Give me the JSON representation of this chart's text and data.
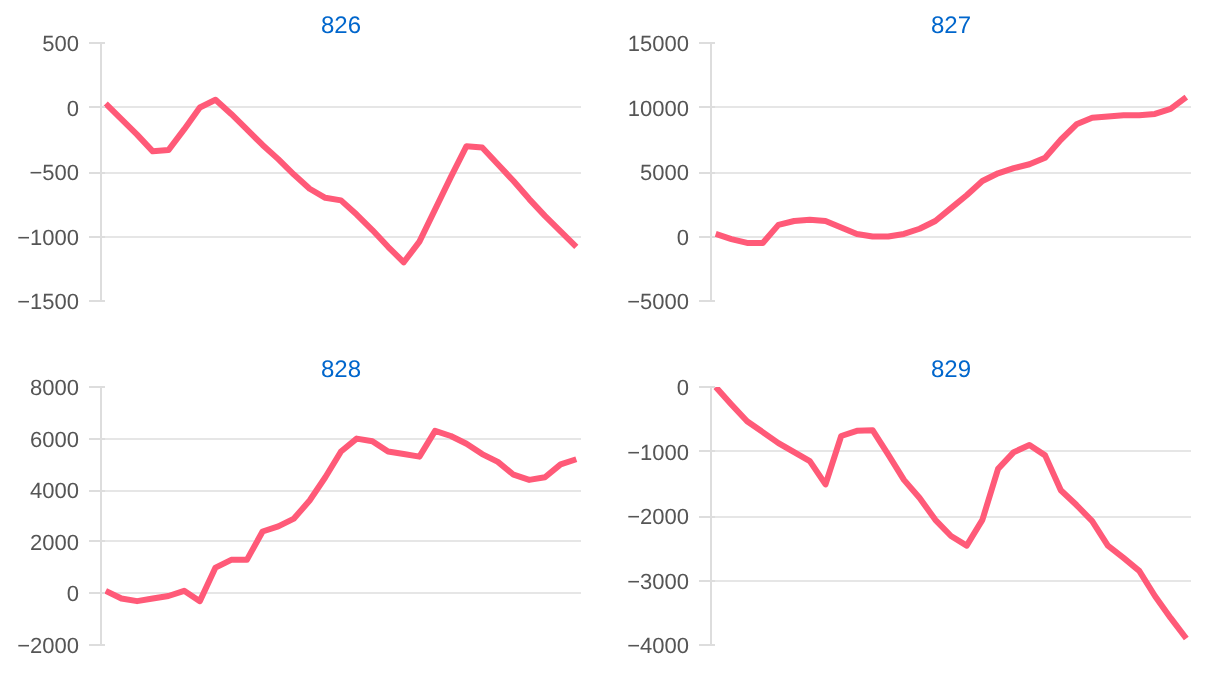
{
  "chart_data": [
    {
      "type": "line",
      "title": "826",
      "categories": [
        null,
        null,
        null,
        null,
        null,
        null,
        null,
        null,
        null,
        null,
        null,
        null,
        null,
        null,
        null,
        null,
        null,
        null,
        null,
        null,
        null,
        null,
        null,
        null,
        null,
        null,
        null,
        null,
        null,
        null,
        null
      ],
      "series": [
        {
          "color": "#ff5a78",
          "values": [
            30,
            -90,
            -210,
            -340,
            -330,
            -170,
            0,
            60,
            -50,
            -170,
            -290,
            -400,
            -520,
            -630,
            -700,
            -720,
            -830,
            -950,
            -1080,
            -1200,
            -1040,
            -790,
            -540,
            -300,
            -310,
            -440,
            -570,
            -710,
            -840,
            -960,
            -1080
          ]
        }
      ],
      "ylim": [
        -1500,
        500
      ],
      "yticks": [
        -1500,
        -1000,
        -500,
        0,
        500
      ],
      "grid": "y",
      "tick_labels": "y"
    },
    {
      "type": "line",
      "title": "827",
      "categories": [
        null,
        null,
        null,
        null,
        null,
        null,
        null,
        null,
        null,
        null,
        null,
        null,
        null,
        null,
        null,
        null,
        null,
        null,
        null,
        null,
        null,
        null,
        null,
        null,
        null,
        null,
        null,
        null,
        null,
        null,
        null
      ],
      "series": [
        {
          "color": "#ff5a78",
          "values": [
            200,
            -200,
            -500,
            -500,
            900,
            1200,
            1300,
            1200,
            700,
            200,
            0,
            0,
            200,
            600,
            1200,
            2200,
            3200,
            4300,
            4900,
            5300,
            5600,
            6100,
            7500,
            8700,
            9200,
            9300,
            9400,
            9400,
            9500,
            9900,
            10800
          ]
        }
      ],
      "ylim": [
        -5000,
        15000
      ],
      "yticks": [
        -5000,
        0,
        5000,
        10000,
        15000
      ],
      "grid": "y",
      "tick_labels": "y"
    },
    {
      "type": "line",
      "title": "828",
      "categories": [
        null,
        null,
        null,
        null,
        null,
        null,
        null,
        null,
        null,
        null,
        null,
        null,
        null,
        null,
        null,
        null,
        null,
        null,
        null,
        null,
        null,
        null,
        null,
        null,
        null,
        null,
        null,
        null,
        null,
        null,
        null
      ],
      "series": [
        {
          "color": "#ff5a78",
          "values": [
            100,
            -200,
            -300,
            -200,
            -100,
            100,
            -300,
            1000,
            1300,
            1300,
            2400,
            2600,
            2900,
            3600,
            4500,
            5500,
            6000,
            5900,
            5500,
            5400,
            5300,
            6300,
            6100,
            5800,
            5400,
            5100,
            4600,
            4400,
            4500,
            5000,
            5200
          ]
        }
      ],
      "ylim": [
        -2000,
        8000
      ],
      "yticks": [
        -2000,
        0,
        2000,
        4000,
        6000,
        8000
      ],
      "grid": "y",
      "tick_labels": "y"
    },
    {
      "type": "line",
      "title": "829",
      "categories": [
        null,
        null,
        null,
        null,
        null,
        null,
        null,
        null,
        null,
        null,
        null,
        null,
        null,
        null,
        null,
        null,
        null,
        null,
        null,
        null,
        null,
        null,
        null,
        null,
        null,
        null,
        null,
        null,
        null,
        null,
        null
      ],
      "series": [
        {
          "color": "#ff5a78",
          "values": [
            0,
            -270,
            -530,
            -700,
            -870,
            -1010,
            -1150,
            -1510,
            -760,
            -680,
            -670,
            -1050,
            -1440,
            -1720,
            -2060,
            -2310,
            -2460,
            -2060,
            -1270,
            -1010,
            -900,
            -1060,
            -1600,
            -1830,
            -2080,
            -2460,
            -2650,
            -2850,
            -3240,
            -3580,
            -3900
          ]
        }
      ],
      "ylim": [
        -4000,
        0
      ],
      "yticks": [
        -4000,
        -3000,
        -2000,
        -1000,
        0
      ],
      "grid": "y",
      "tick_labels": "y"
    }
  ]
}
